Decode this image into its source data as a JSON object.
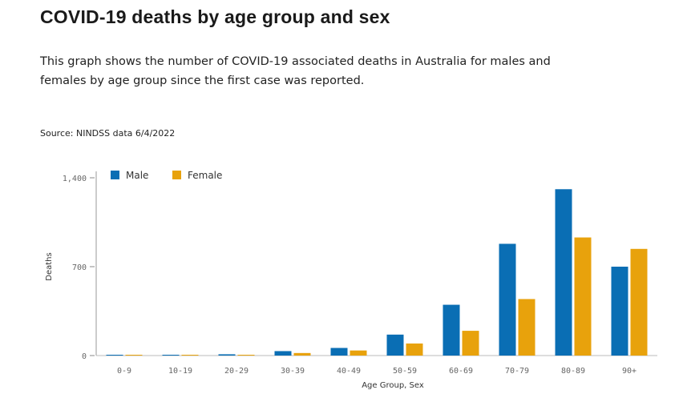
{
  "header": {
    "title": "COVID-19 deaths by age group and sex",
    "description": "This graph shows the number of COVID-19 associated deaths in Australia for males and females by age group since the first case was reported.",
    "source": "Source: NINDSS data 6/4/2022"
  },
  "colors": {
    "male": "#0a6eb4",
    "female": "#e8a20c"
  },
  "chart_data": {
    "type": "bar",
    "xlabel": "Age Group, Sex",
    "ylabel": "Deaths",
    "ylim": [
      0,
      1400
    ],
    "yticks": [
      {
        "value": 0,
        "label": "0"
      },
      {
        "value": 700,
        "label": "700"
      },
      {
        "value": 1400,
        "label": "1,400"
      }
    ],
    "legend_position": "top-left",
    "categories": [
      "0-9",
      "10-19",
      "20-29",
      "30-39",
      "40-49",
      "50-59",
      "60-69",
      "70-79",
      "80-89",
      "90+"
    ],
    "series": [
      {
        "name": "Male",
        "values": [
          3,
          2,
          10,
          35,
          60,
          165,
          400,
          880,
          1310,
          700
        ]
      },
      {
        "name": "Female",
        "values": [
          2,
          1,
          5,
          20,
          40,
          95,
          195,
          445,
          930,
          840
        ]
      }
    ]
  }
}
